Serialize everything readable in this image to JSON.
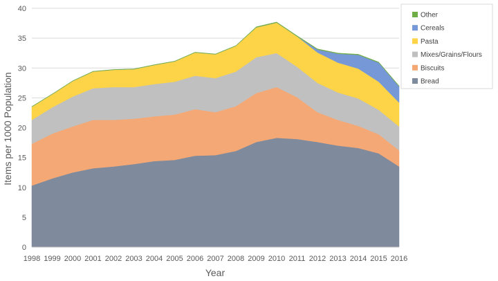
{
  "chart_data": {
    "type": "area",
    "stacked": true,
    "title": "",
    "xlabel": "Year",
    "ylabel": "Items per 1000 Population",
    "ylim": [
      0,
      40
    ],
    "yticks": [
      0,
      5,
      10,
      15,
      20,
      25,
      30,
      35,
      40
    ],
    "grid": true,
    "legend_position": "right",
    "x": [
      "1998",
      "1999",
      "2000",
      "2001",
      "2002",
      "2003",
      "2004",
      "2005",
      "2006",
      "2007",
      "2008",
      "2009",
      "2010",
      "2011",
      "2012",
      "2013",
      "2014",
      "2015",
      "2016"
    ],
    "series": [
      {
        "name": "Bread",
        "color": "#7f8a9c",
        "values": [
          10.3,
          11.5,
          12.5,
          13.2,
          13.5,
          13.9,
          14.4,
          14.6,
          15.3,
          15.4,
          16.1,
          17.6,
          18.3,
          18.1,
          17.6,
          17.0,
          16.6,
          15.7,
          13.5
        ]
      },
      {
        "name": "Biscuits",
        "color": "#f4a875",
        "values": [
          7.0,
          7.5,
          7.7,
          8.1,
          7.8,
          7.6,
          7.5,
          7.6,
          7.8,
          7.2,
          7.5,
          8.2,
          8.5,
          7.0,
          5.0,
          4.3,
          3.7,
          3.2,
          2.7
        ]
      },
      {
        "name": "Mixes/Grains/Flours",
        "color": "#c0c0c0",
        "values": [
          4.0,
          4.4,
          5.0,
          5.3,
          5.5,
          5.3,
          5.4,
          5.5,
          5.6,
          5.7,
          5.8,
          6.0,
          5.7,
          5.1,
          4.9,
          4.6,
          4.6,
          4.1,
          4.0
        ]
      },
      {
        "name": "Pasta",
        "color": "#fdd447",
        "values": [
          2.2,
          2.2,
          2.6,
          2.8,
          2.9,
          3.0,
          3.2,
          3.4,
          3.9,
          4.0,
          4.3,
          5.0,
          5.1,
          5.1,
          5.1,
          5.0,
          5.0,
          4.7,
          4.0
        ]
      },
      {
        "name": "Cereals",
        "color": "#7698d7",
        "values": [
          0.0,
          0.0,
          0.0,
          0.0,
          0.0,
          0.0,
          0.0,
          0.0,
          0.0,
          0.0,
          0.0,
          0.0,
          0.0,
          0.0,
          0.5,
          1.5,
          2.3,
          3.2,
          2.7
        ]
      },
      {
        "name": "Other",
        "color": "#70ad47",
        "values": [
          0.05,
          0.05,
          0.05,
          0.05,
          0.05,
          0.05,
          0.05,
          0.05,
          0.05,
          0.05,
          0.05,
          0.1,
          0.1,
          0.1,
          0.1,
          0.1,
          0.1,
          0.1,
          0.1
        ]
      }
    ],
    "legend_order": [
      "Other",
      "Cereals",
      "Pasta",
      "Mixes/Grains/Flours",
      "Biscuits",
      "Bread"
    ]
  }
}
